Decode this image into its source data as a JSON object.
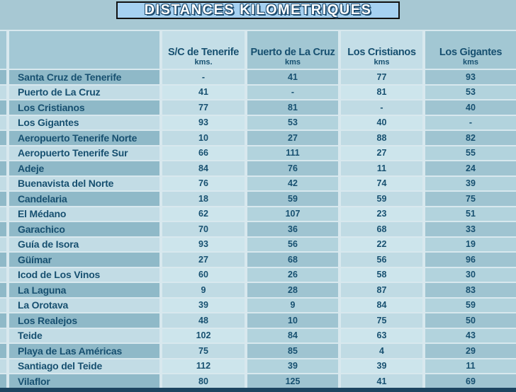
{
  "title": "DISTANCES KILOMETRIQUES",
  "chart_data": {
    "type": "table",
    "title": "DISTANCES KILOMETRIQUES",
    "columns": [
      {
        "label": "S/C de Tenerife",
        "unit": "kms."
      },
      {
        "label": "Puerto de La Cruz",
        "unit": "kms"
      },
      {
        "label": "Los Cristianos",
        "unit": "kms"
      },
      {
        "label": "Los Gigantes",
        "unit": "kms"
      }
    ],
    "rows": [
      {
        "label": "Santa Cruz de Tenerife",
        "values": [
          "-",
          "41",
          "77",
          "93"
        ]
      },
      {
        "label": "Puerto de La Cruz",
        "values": [
          "41",
          "-",
          "81",
          "53"
        ]
      },
      {
        "label": "Los Cristianos",
        "values": [
          "77",
          "81",
          "-",
          "40"
        ]
      },
      {
        "label": "Los Gigantes",
        "values": [
          "93",
          "53",
          "40",
          "-"
        ]
      },
      {
        "label": "Aeropuerto Tenerife Norte",
        "values": [
          "10",
          "27",
          "88",
          "82"
        ]
      },
      {
        "label": "Aeropuerto Tenerife Sur",
        "values": [
          "66",
          "111",
          "27",
          "55"
        ]
      },
      {
        "label": "Adeje",
        "values": [
          "84",
          "76",
          "11",
          "24"
        ]
      },
      {
        "label": "Buenavista del Norte",
        "values": [
          "76",
          "42",
          "74",
          "39"
        ]
      },
      {
        "label": "Candelaria",
        "values": [
          "18",
          "59",
          "59",
          "75"
        ]
      },
      {
        "label": "El Médano",
        "values": [
          "62",
          "107",
          "23",
          "51"
        ]
      },
      {
        "label": "Garachico",
        "values": [
          "70",
          "36",
          "68",
          "33"
        ]
      },
      {
        "label": "Guía de Isora",
        "values": [
          "93",
          "56",
          "22",
          "19"
        ]
      },
      {
        "label": "Güímar",
        "values": [
          "27",
          "68",
          "56",
          "96"
        ]
      },
      {
        "label": "Icod de Los Vinos",
        "values": [
          "60",
          "26",
          "58",
          "30"
        ]
      },
      {
        "label": "La Laguna",
        "values": [
          "9",
          "28",
          "87",
          "83"
        ]
      },
      {
        "label": "La Orotava",
        "values": [
          "39",
          "9",
          "84",
          "59"
        ]
      },
      {
        "label": "Los Realejos",
        "values": [
          "48",
          "10",
          "75",
          "50"
        ]
      },
      {
        "label": "Teide",
        "values": [
          "102",
          "84",
          "63",
          "43"
        ]
      },
      {
        "label": "Playa de Las Américas",
        "values": [
          "75",
          "85",
          "4",
          "29"
        ]
      },
      {
        "label": "Santiago del Teide",
        "values": [
          "112",
          "39",
          "39",
          "11"
        ]
      },
      {
        "label": "Vilaflor",
        "values": [
          "80",
          "125",
          "41",
          "69"
        ]
      }
    ]
  },
  "colors": {
    "page_bg": "#a7c8d3",
    "gap_line": "#d8e8ee",
    "text": "#175070",
    "title_bg": "#a6d1f1",
    "title_text": "#ffffff",
    "title_outline": "#1d4a6d",
    "border_black": "#111111",
    "header_label": "#a3c8d5",
    "header_light": "#c4dee7",
    "header_dark": "#a2c7d3",
    "label_odd": "#8fb9c8",
    "label_even": "#c2dce5",
    "light_odd": "#c0dbe4",
    "light_even": "#cde5ec",
    "dark_odd": "#9fc4d1",
    "dark_even": "#b2d3dd",
    "bottom_bar": "#1c4460"
  }
}
